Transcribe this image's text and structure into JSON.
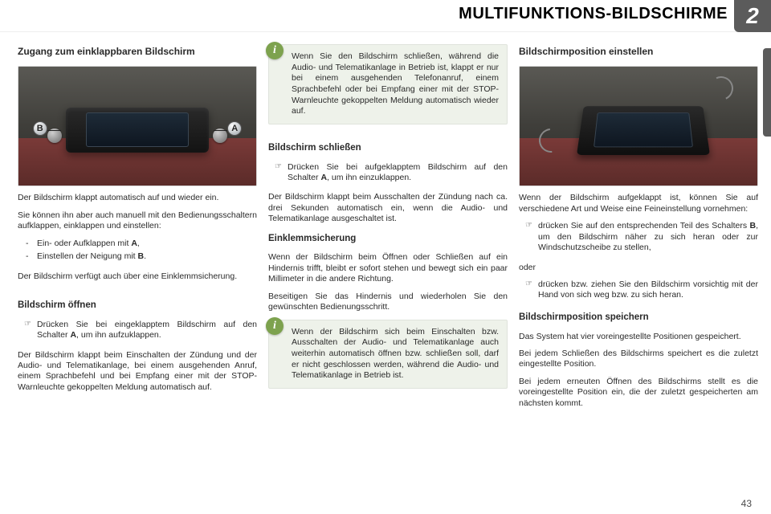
{
  "chapter": {
    "number": "2",
    "title": "MULTIFUNKTIONS-BILDSCHIRME"
  },
  "page_number": "43",
  "col1": {
    "h1": "Zugang zum einklappbaren Bildschirm",
    "callout_a": "A",
    "callout_b": "B",
    "p1": "Der Bildschirm klappt automatisch auf und wieder ein.",
    "p2": "Sie können ihn aber auch manuell mit den Bedienungsschaltern aufklappen, einklappen und einstellen:",
    "li1_pre": "Ein- oder Aufklappen mit ",
    "li1_b": "A",
    "li1_post": ",",
    "li2_pre": "Einstellen der Neigung mit ",
    "li2_b": "B",
    "li2_post": ".",
    "p3": "Der Bildschirm verfügt auch über eine Einklemmsicherung.",
    "h2": "Bildschirm öffnen",
    "li3_pre": "Drücken Sie bei eingeklapptem Bildschirm auf den Schalter ",
    "li3_b": "A",
    "li3_post": ", um ihn aufzuklappen.",
    "p4": "Der Bildschirm klappt beim Einschalten der Zündung und der Audio- und Telematikanlage, bei einem ausgehenden Anruf, einem Sprachbefehl und bei Empfang einer mit der STOP-Warnleuchte gekoppelten Meldung automatisch auf."
  },
  "col2": {
    "info1": "Wenn Sie den Bildschirm schließen, während die Audio- und Telematikanlage in Betrieb ist, klappt er nur bei einem ausgehenden Telefonanruf, einem Sprachbefehl oder bei Empfang einer mit der STOP-Warnleuchte gekoppelten Meldung automatisch wieder auf.",
    "h1": "Bildschirm schließen",
    "li1_pre": "Drücken Sie bei aufgeklapptem Bildschirm auf den Schalter ",
    "li1_b": "A",
    "li1_post": ", um ihn einzuklappen.",
    "p1": "Der Bildschirm klappt beim Ausschalten der Zündung nach ca. drei Sekunden automatisch ein, wenn die Audio- und Telematikanlage ausgeschaltet ist.",
    "h2": "Einklemmsicherung",
    "p2": "Wenn der Bildschirm beim Öffnen oder Schließen auf ein Hindernis trifft, bleibt er sofort stehen und bewegt sich ein paar Millimeter in die andere Richtung.",
    "p3": "Beseitigen Sie das Hindernis und wiederholen Sie den gewünschten Bedienungsschritt.",
    "info2": "Wenn der Bildschirm sich beim Einschalten bzw. Ausschalten der Audio- und Telematikanlage auch weiterhin automatisch öffnen bzw. schließen soll, darf er nicht geschlossen werden, während die Audio- und Telematikanlage in Betrieb ist."
  },
  "col3": {
    "h1": "Bildschirmposition einstellen",
    "p1": "Wenn der Bildschirm aufgeklappt ist, können Sie auf verschiedene Art und Weise eine Feineinstellung vornehmen:",
    "li1_pre": "drücken Sie auf den entsprechenden Teil des Schalters ",
    "li1_b": "B",
    "li1_post": ", um den Bildschirm näher zu sich heran oder zur Windschutzscheibe zu stellen,",
    "oder": "oder",
    "li2": "drücken bzw. ziehen Sie den Bildschirm vorsichtig mit der Hand von sich weg bzw. zu sich heran.",
    "h2": "Bildschirmposition speichern",
    "p2": "Das System hat vier voreingestellte Positionen gespeichert.",
    "p3": "Bei jedem Schließen des Bildschirms speichert es die zuletzt eingestellte Position.",
    "p4": "Bei jedem erneuten Öffnen des Bildschirms stellt es die voreingestellte Position ein, die der zuletzt gespeicherten am nächsten kommt."
  },
  "icons": {
    "info": "i"
  }
}
